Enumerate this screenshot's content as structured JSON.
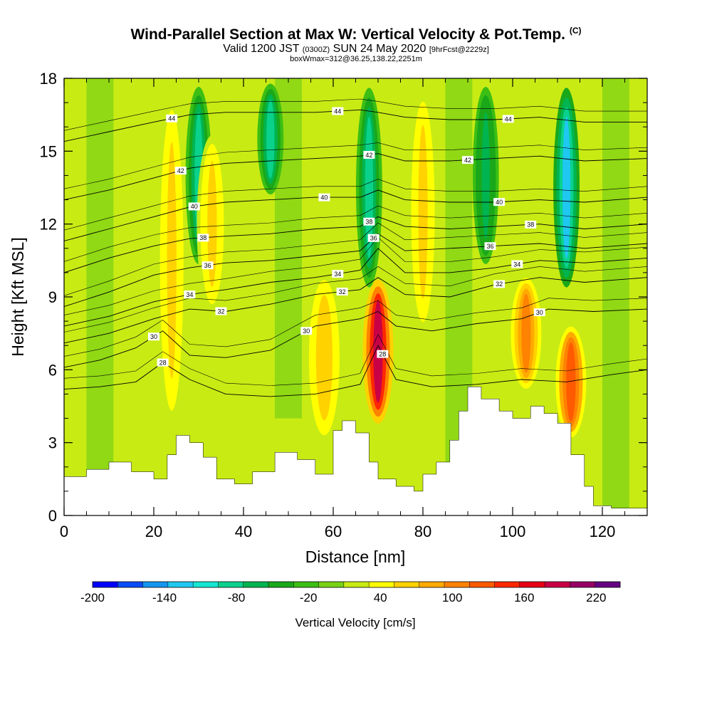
{
  "title": {
    "main": "Wind-Parallel Section at Max W: Vertical Velocity & Pot.Temp.",
    "copyright": "(C)",
    "valid_prefix": "Valid 1200 JST",
    "valid_utc": "(0300Z)",
    "valid_date": "SUN 24 May 2020",
    "forecast": "[9hrFcst@2229z]",
    "box": "boxWmax=312@36.25,138.22,2251m"
  },
  "colors": {
    "palette": [
      "#0000ff",
      "#0a4cf5",
      "#1496f0",
      "#1ec8f0",
      "#14e6d2",
      "#0ad28c",
      "#00b450",
      "#1aa81a",
      "#3cbe14",
      "#78d214",
      "#c8eb14",
      "#ffff00",
      "#ffd200",
      "#ffaa00",
      "#ff8200",
      "#ff5a00",
      "#ff2800",
      "#e60014",
      "#c80046",
      "#960064",
      "#640082"
    ],
    "contour": "#000000",
    "terrain": "#ffffff"
  },
  "chart_data": {
    "type": "heatmap",
    "xlabel": "Distance [nm]",
    "ylabel": "Height [Kft MSL]",
    "xlim": [
      0,
      130
    ],
    "ylim": [
      0,
      18
    ],
    "x_ticks": [
      "0",
      "20",
      "40",
      "60",
      "80",
      "100",
      "120"
    ],
    "y_ticks": [
      "0",
      "3",
      "6",
      "9",
      "12",
      "15",
      "18"
    ],
    "colorbar": {
      "title": "Vertical Velocity [cm/s]",
      "min": -200,
      "max": 240,
      "tick_labels": [
        "-200",
        "-140",
        "-80",
        "-20",
        "40",
        "100",
        "160",
        "220"
      ]
    },
    "terrain_top_kft": [
      {
        "x": 0,
        "y": 1.6
      },
      {
        "x": 5,
        "y": 1.9
      },
      {
        "x": 10,
        "y": 2.2
      },
      {
        "x": 15,
        "y": 1.8
      },
      {
        "x": 20,
        "y": 1.5
      },
      {
        "x": 23,
        "y": 2.5
      },
      {
        "x": 25,
        "y": 3.3
      },
      {
        "x": 28,
        "y": 3.0
      },
      {
        "x": 31,
        "y": 2.4
      },
      {
        "x": 34,
        "y": 1.5
      },
      {
        "x": 38,
        "y": 1.3
      },
      {
        "x": 42,
        "y": 1.8
      },
      {
        "x": 47,
        "y": 2.6
      },
      {
        "x": 52,
        "y": 2.3
      },
      {
        "x": 56,
        "y": 1.7
      },
      {
        "x": 60,
        "y": 3.5
      },
      {
        "x": 62,
        "y": 3.9
      },
      {
        "x": 65,
        "y": 3.4
      },
      {
        "x": 68,
        "y": 2.2
      },
      {
        "x": 70,
        "y": 1.5
      },
      {
        "x": 74,
        "y": 1.2
      },
      {
        "x": 78,
        "y": 1.0
      },
      {
        "x": 80,
        "y": 1.7
      },
      {
        "x": 83,
        "y": 2.2
      },
      {
        "x": 86,
        "y": 3.1
      },
      {
        "x": 88,
        "y": 4.3
      },
      {
        "x": 90,
        "y": 5.3
      },
      {
        "x": 93,
        "y": 4.8
      },
      {
        "x": 97,
        "y": 4.3
      },
      {
        "x": 100,
        "y": 4.0
      },
      {
        "x": 104,
        "y": 4.5
      },
      {
        "x": 107,
        "y": 4.2
      },
      {
        "x": 110,
        "y": 3.8
      },
      {
        "x": 113,
        "y": 2.5
      },
      {
        "x": 116,
        "y": 1.2
      },
      {
        "x": 118,
        "y": 0.4
      },
      {
        "x": 122,
        "y": 0.3
      },
      {
        "x": 126,
        "y": 0.3
      },
      {
        "x": 130,
        "y": 0.3
      }
    ],
    "updraft_cores": [
      {
        "x": 24,
        "y_bottom": 3,
        "y_top": 18,
        "peak_cms": 60
      },
      {
        "x": 33,
        "y_bottom": 8,
        "y_top": 16,
        "peak_cms": 60
      },
      {
        "x": 42,
        "y_bottom": 6,
        "y_top": 14,
        "peak_cms": 30
      },
      {
        "x": 58,
        "y_bottom": 3,
        "y_top": 10,
        "peak_cms": 70
      },
      {
        "x": 70,
        "y_bottom": 3.5,
        "y_top": 10,
        "peak_cms": 180
      },
      {
        "x": 80,
        "y_bottom": 7,
        "y_top": 18,
        "peak_cms": 60
      },
      {
        "x": 103,
        "y_bottom": 5,
        "y_top": 10,
        "peak_cms": 110
      },
      {
        "x": 113,
        "y_bottom": 3,
        "y_top": 8,
        "peak_cms": 130
      }
    ],
    "downdraft_cores": [
      {
        "x": 30,
        "y_bottom": 10,
        "y_top": 18,
        "peak_cms": -80
      },
      {
        "x": 46,
        "y_bottom": 13,
        "y_top": 18,
        "peak_cms": -80
      },
      {
        "x": 68,
        "y_bottom": 9,
        "y_top": 18,
        "peak_cms": -80
      },
      {
        "x": 94,
        "y_bottom": 10,
        "y_top": 18,
        "peak_cms": -60
      },
      {
        "x": 112,
        "y_bottom": 9,
        "y_top": 18,
        "peak_cms": -120
      }
    ],
    "theta_contours": [
      {
        "label": "28",
        "points": [
          [
            0,
            5.2
          ],
          [
            8,
            5.3
          ],
          [
            16,
            5.5
          ],
          [
            22,
            6.3
          ],
          [
            28,
            5.6
          ],
          [
            36,
            5.0
          ],
          [
            46,
            4.9
          ],
          [
            56,
            5.0
          ],
          [
            66,
            5.4
          ],
          [
            70,
            7.0
          ],
          [
            74,
            5.6
          ],
          [
            82,
            5.3
          ],
          [
            92,
            5.4
          ],
          [
            102,
            5.6
          ],
          [
            112,
            5.5
          ],
          [
            122,
            5.8
          ],
          [
            130,
            6.0
          ]
        ],
        "label_x": 22,
        "label_x2": 71
      },
      {
        "label": "30",
        "points": [
          [
            0,
            6.1
          ],
          [
            8,
            6.4
          ],
          [
            16,
            6.9
          ],
          [
            22,
            7.6
          ],
          [
            28,
            6.6
          ],
          [
            36,
            6.5
          ],
          [
            46,
            6.8
          ],
          [
            56,
            7.8
          ],
          [
            66,
            8.1
          ],
          [
            70,
            8.4
          ],
          [
            74,
            7.8
          ],
          [
            82,
            7.6
          ],
          [
            92,
            7.9
          ],
          [
            102,
            8.1
          ],
          [
            108,
            8.5
          ],
          [
            118,
            8.4
          ],
          [
            130,
            8.5
          ]
        ],
        "label_x": 20,
        "label_x2": 54,
        "label_x3": 106
      },
      {
        "label": "32",
        "points": [
          [
            0,
            7.1
          ],
          [
            10,
            7.5
          ],
          [
            20,
            8.1
          ],
          [
            28,
            8.5
          ],
          [
            36,
            8.4
          ],
          [
            46,
            8.7
          ],
          [
            56,
            9.1
          ],
          [
            66,
            9.3
          ],
          [
            70,
            9.8
          ],
          [
            76,
            9.1
          ],
          [
            86,
            9.0
          ],
          [
            96,
            9.5
          ],
          [
            106,
            9.8
          ],
          [
            116,
            9.6
          ],
          [
            130,
            9.8
          ]
        ],
        "label_x": 35,
        "label_x2": 62,
        "label_x3": 97
      },
      {
        "label": "34",
        "points": [
          [
            0,
            7.8
          ],
          [
            10,
            8.2
          ],
          [
            20,
            8.8
          ],
          [
            28,
            9.1
          ],
          [
            36,
            9.3
          ],
          [
            46,
            9.6
          ],
          [
            56,
            9.8
          ],
          [
            66,
            10.1
          ],
          [
            70,
            11.0
          ],
          [
            76,
            10.0
          ],
          [
            86,
            10.0
          ],
          [
            96,
            10.2
          ],
          [
            106,
            10.5
          ],
          [
            116,
            10.4
          ],
          [
            130,
            10.6
          ]
        ],
        "label_x": 28,
        "label_x2": 61,
        "label_x3": 101
      },
      {
        "label": "36",
        "points": [
          [
            0,
            8.6
          ],
          [
            10,
            9.2
          ],
          [
            20,
            9.9
          ],
          [
            28,
            10.2
          ],
          [
            36,
            10.4
          ],
          [
            46,
            10.5
          ],
          [
            56,
            10.7
          ],
          [
            66,
            10.9
          ],
          [
            70,
            11.6
          ],
          [
            76,
            10.9
          ],
          [
            86,
            11.0
          ],
          [
            96,
            11.1
          ],
          [
            106,
            11.2
          ],
          [
            116,
            11.0
          ],
          [
            130,
            11.2
          ]
        ],
        "label_x": 32,
        "label_x2": 69,
        "label_x3": 95
      },
      {
        "label": "38",
        "points": [
          [
            0,
            10.0
          ],
          [
            10,
            10.6
          ],
          [
            20,
            11.1
          ],
          [
            28,
            11.4
          ],
          [
            36,
            11.5
          ],
          [
            46,
            11.6
          ],
          [
            56,
            11.8
          ],
          [
            66,
            11.9
          ],
          [
            70,
            12.3
          ],
          [
            76,
            11.9
          ],
          [
            86,
            11.8
          ],
          [
            96,
            11.9
          ],
          [
            106,
            12.0
          ],
          [
            116,
            11.8
          ],
          [
            130,
            12.0
          ]
        ],
        "label_x": 31,
        "label_x2": 68,
        "label_x3": 104
      },
      {
        "label": "40",
        "points": [
          [
            0,
            11.3
          ],
          [
            10,
            11.8
          ],
          [
            20,
            12.3
          ],
          [
            28,
            12.7
          ],
          [
            36,
            12.9
          ],
          [
            46,
            13.0
          ],
          [
            56,
            13.1
          ],
          [
            66,
            13.1
          ],
          [
            70,
            13.4
          ],
          [
            76,
            13.0
          ],
          [
            86,
            12.9
          ],
          [
            96,
            12.9
          ],
          [
            106,
            13.0
          ],
          [
            116,
            12.9
          ],
          [
            130,
            13.1
          ]
        ],
        "label_x": 29,
        "label_x2": 58,
        "label_x3": 97
      },
      {
        "label": "42",
        "points": [
          [
            0,
            13.0
          ],
          [
            10,
            13.4
          ],
          [
            20,
            13.9
          ],
          [
            28,
            14.3
          ],
          [
            36,
            14.5
          ],
          [
            46,
            14.6
          ],
          [
            56,
            14.7
          ],
          [
            66,
            14.8
          ],
          [
            70,
            14.9
          ],
          [
            76,
            14.6
          ],
          [
            86,
            14.6
          ],
          [
            96,
            14.7
          ],
          [
            106,
            14.8
          ],
          [
            116,
            14.6
          ],
          [
            130,
            14.7
          ]
        ],
        "label_x": 26,
        "label_x2": 68,
        "label_x3": 90
      },
      {
        "label": "44",
        "points": [
          [
            0,
            15.4
          ],
          [
            10,
            15.8
          ],
          [
            20,
            16.2
          ],
          [
            28,
            16.5
          ],
          [
            36,
            16.6
          ],
          [
            46,
            16.6
          ],
          [
            56,
            16.6
          ],
          [
            66,
            16.7
          ],
          [
            70,
            16.6
          ],
          [
            76,
            16.4
          ],
          [
            86,
            16.3
          ],
          [
            96,
            16.3
          ],
          [
            106,
            16.4
          ],
          [
            116,
            16.2
          ],
          [
            130,
            16.2
          ]
        ],
        "label_x": 24,
        "label_x2": 61,
        "label_x3": 99
      }
    ]
  }
}
